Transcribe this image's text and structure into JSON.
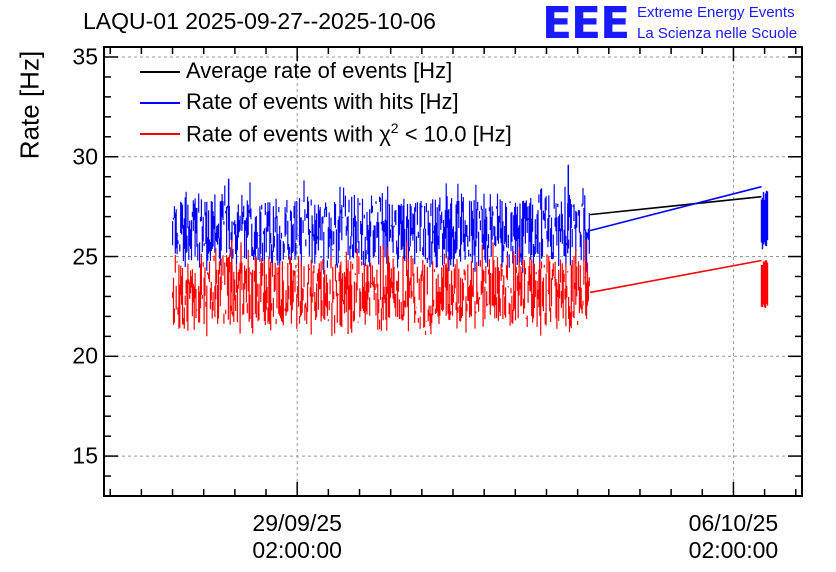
{
  "title": "LAQU-01 2025-09-27--2025-10-06",
  "logo": {
    "mark": "EEE",
    "line1": "Extreme Energy Events",
    "line2": "La Scienza nelle Scuole"
  },
  "colors": {
    "avg": "#000000",
    "hits": "#0000ff",
    "chi2": "#ff0000",
    "logo": "#1a1aff"
  },
  "chart_data": {
    "type": "line",
    "title": "LAQU-01 2025-09-27--2025-10-06",
    "xlabel": "",
    "ylabel": "Rate [Hz]",
    "ylim": [
      13,
      35.5
    ],
    "yticks": [
      "15",
      "20",
      "25",
      "30",
      "35"
    ],
    "xticks": [
      {
        "date": "29/09/25",
        "time": "02:00:00"
      },
      {
        "date": "06/10/25",
        "time": "02:00:00"
      }
    ],
    "x_unit": "days since 27/09/25 02:00",
    "xlim": [
      -1.1,
      10.1
    ],
    "x_tick_values": [
      2,
      9
    ],
    "grid": true,
    "legend_position": "top-left",
    "legend": [
      {
        "label": "Average rate of events [Hz]",
        "color": "#000000"
      },
      {
        "label": "Rate of events with hits [Hz]",
        "color": "#0000ff"
      },
      {
        "label_prefix": "Rate of events with ",
        "label_symbol": "χ",
        "label_sup": "2",
        "label_suffix": " < 10.0 [Hz]",
        "color": "#ff0000"
      }
    ],
    "series": [
      {
        "name": "Rate of events with hits [Hz]",
        "color": "#0000ff",
        "mean": 26.3,
        "band": [
          24.6,
          28.0
        ],
        "peaks": [
          28.9,
          29.6
        ]
      },
      {
        "name": "Rate of events with χ2 < 10.0 [Hz]",
        "color": "#ff0000",
        "mean": 23.2,
        "band": [
          21.5,
          25.0
        ],
        "peaks": [
          25.8
        ]
      },
      {
        "name": "Average rate of events [Hz]",
        "color": "#000000",
        "mean": 26.9
      }
    ],
    "segments": [
      {
        "x_start": 0.0,
        "x_end": 6.7
      },
      {
        "x_start": 9.45,
        "x_end": 9.55
      }
    ],
    "connecting_lines": [
      {
        "series": "Average rate of events [Hz]",
        "from": [
          6.7,
          27.1
        ],
        "to": [
          9.45,
          28.0
        ]
      },
      {
        "series": "Rate of events with hits [Hz]",
        "from": [
          6.7,
          26.3
        ],
        "to": [
          9.45,
          28.5
        ]
      },
      {
        "series": "Rate of events with χ2 < 10.0 [Hz]",
        "from": [
          6.7,
          23.2
        ],
        "to": [
          9.45,
          24.8
        ]
      }
    ]
  }
}
